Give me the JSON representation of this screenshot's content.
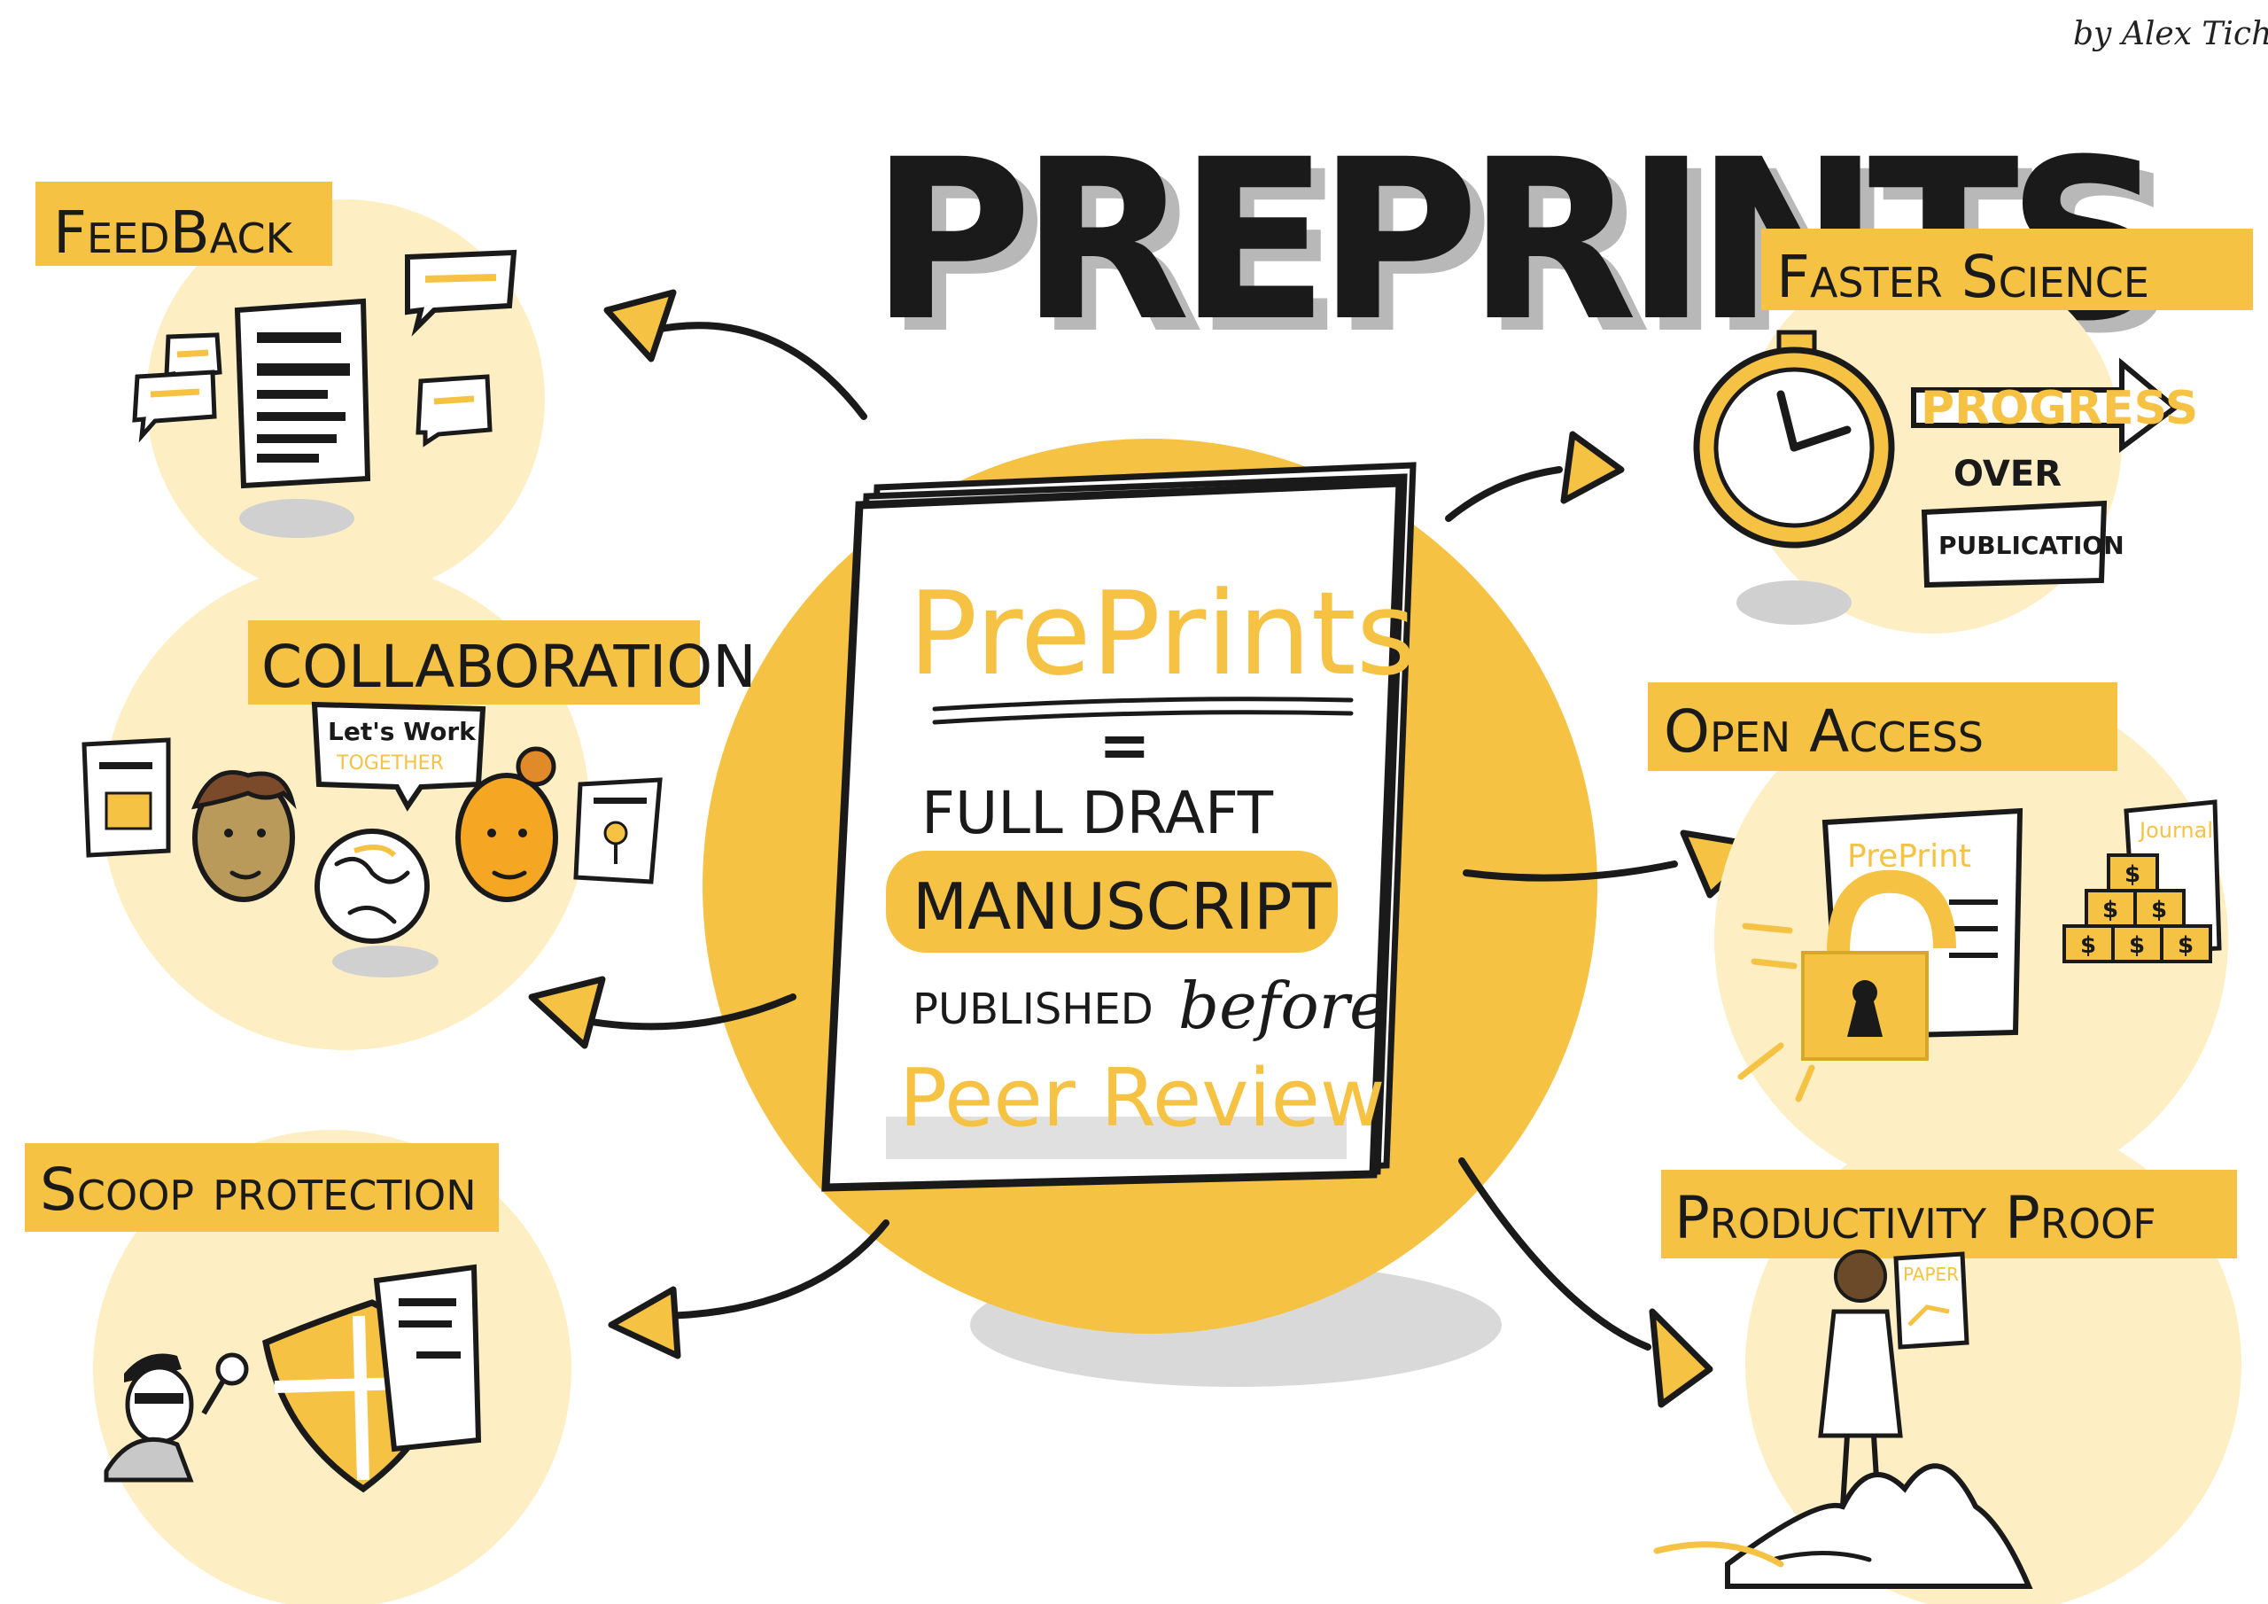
{
  "author": "by Alex Tichy",
  "title": "PREPRINTS",
  "colors": {
    "accent": "#f5c243",
    "pale": "#fdeec3",
    "ink": "#1a1a1a",
    "shadow": "#d9d9d9"
  },
  "center_document": {
    "heading": "PrePrints",
    "equals": "=",
    "line1": "FULL DRAFT",
    "line2": "MANUSCRIPT",
    "line3": "PUBLISHED",
    "line3_script": "before",
    "line4": "Peer Review"
  },
  "benefits": {
    "feedback": {
      "label": "FeedBack"
    },
    "collaboration": {
      "label": "COLLABORATION",
      "speech_line1": "Let's Work",
      "speech_line2": "TOGETHER"
    },
    "scoop": {
      "label": "Scoop protection"
    },
    "faster": {
      "label": "Faster Science",
      "banner": "PROGRESS",
      "over": "OVER",
      "publication": "PUBLICATION"
    },
    "open_access": {
      "label": "Open Access",
      "doc_label": "PrePrint",
      "stack_label": "Journal",
      "coin_symbol": "$"
    },
    "productivity": {
      "label": "Productivity Proof",
      "sign": "PAPER"
    }
  }
}
